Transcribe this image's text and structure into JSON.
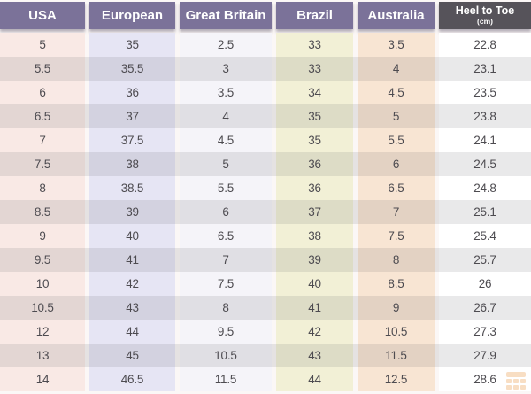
{
  "chart_data": {
    "type": "table",
    "columns": [
      {
        "label": "USA",
        "header_bg": "#7b7299",
        "col_bg": "#f9e9e5"
      },
      {
        "label": "European",
        "header_bg": "#7b7299",
        "col_bg": "#e6e5f4"
      },
      {
        "label": "Great Britain",
        "header_bg": "#7b7299",
        "col_bg": "#f5f4f9"
      },
      {
        "label": "Brazil",
        "header_bg": "#7b7299",
        "col_bg": "#f2f0d6"
      },
      {
        "label": "Australia",
        "header_bg": "#7b7299",
        "col_bg": "#f8e5d3"
      },
      {
        "label": "Heel to Toe",
        "sublabel": "(cm)",
        "header_bg": "#56535a",
        "col_bg": "#ffffff"
      }
    ],
    "rows": [
      [
        "5",
        "35",
        "2.5",
        "33",
        "3.5",
        "22.8"
      ],
      [
        "5.5",
        "35.5",
        "3",
        "33",
        "4",
        "23.1"
      ],
      [
        "6",
        "36",
        "3.5",
        "34",
        "4.5",
        "23.5"
      ],
      [
        "6.5",
        "37",
        "4",
        "35",
        "5",
        "23.8"
      ],
      [
        "7",
        "37.5",
        "4.5",
        "35",
        "5.5",
        "24.1"
      ],
      [
        "7.5",
        "38",
        "5",
        "36",
        "6",
        "24.5"
      ],
      [
        "8",
        "38.5",
        "5.5",
        "36",
        "6.5",
        "24.8"
      ],
      [
        "8.5",
        "39",
        "6",
        "37",
        "7",
        "25.1"
      ],
      [
        "9",
        "40",
        "6.5",
        "38",
        "7.5",
        "25.4"
      ],
      [
        "9.5",
        "41",
        "7",
        "39",
        "8",
        "25.7"
      ],
      [
        "10",
        "42",
        "7.5",
        "40",
        "8.5",
        "26"
      ],
      [
        "10.5",
        "43",
        "8",
        "41",
        "9",
        "26.7"
      ],
      [
        "12",
        "44",
        "9.5",
        "42",
        "10.5",
        "27.3"
      ],
      [
        "13",
        "45",
        "10.5",
        "43",
        "11.5",
        "27.9"
      ],
      [
        "14",
        "46.5",
        "11.5",
        "44",
        "12.5",
        "28.6"
      ]
    ]
  },
  "colors": {
    "background": "#fbf7f6",
    "header_text": "#ffffff",
    "text": "#4d4b50",
    "even_row_overlay": "rgba(92,87,94,0.135)",
    "watermark": "#e98b2d"
  },
  "watermark": {
    "icon": "table-logo-icon"
  }
}
